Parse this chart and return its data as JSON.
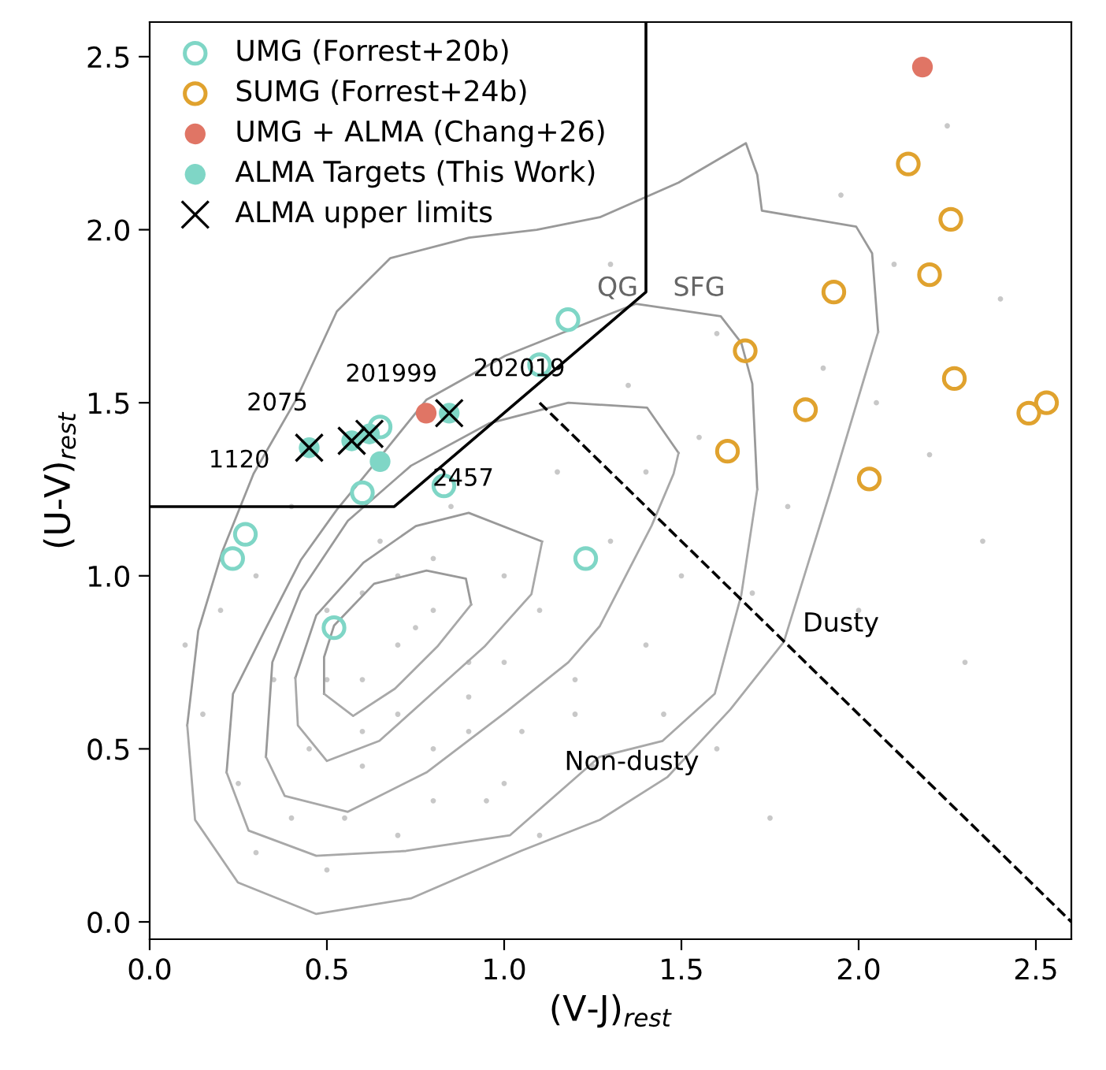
{
  "chart_data": {
    "type": "scatter",
    "xlabel": "(V-J)$_{rest}$",
    "ylabel": "(U-V)$_{rest}$",
    "xlim": [
      0,
      2.6
    ],
    "ylim": [
      -0.05,
      2.6
    ],
    "xticks": [
      {
        "value": 0,
        "label": "0.0"
      },
      0.5,
      {
        "value": 1,
        "label": "1.0"
      },
      1.5,
      {
        "value": 2,
        "label": "2.0"
      },
      2.5
    ],
    "yticks": [
      {
        "value": 0,
        "label": "0.0"
      },
      0.5,
      {
        "value": 1,
        "label": "1.0"
      },
      1.5,
      {
        "value": 2,
        "label": "2.0"
      },
      2.5
    ],
    "grid": false,
    "legend": "top left",
    "annotations": [
      "QG",
      "SFG",
      "Dusty",
      "Non-dusty",
      {
        "text": "1120",
        "x": 0.45,
        "y": 1.37
      },
      {
        "text": "2075",
        "x": 0.57,
        "y": 1.39
      },
      {
        "text": "201999",
        "x": 0.62,
        "y": 1.41
      },
      {
        "text": "2457",
        "x": 0.65,
        "y": 1.33
      },
      {
        "text": "202019",
        "x": 0.845,
        "y": 1.47
      }
    ],
    "series": [
      {
        "color": "#c8c8c8",
        "marker": "circle",
        "x": [
          0.15,
          0.2,
          0.25,
          0.3,
          0.35,
          0.4,
          0.45,
          0.5,
          0.55,
          0.6,
          0.65,
          0.7,
          0.75,
          0.8,
          0.85,
          0.9,
          0.95,
          1.0,
          1.05,
          1.1,
          1.15,
          1.2,
          1.25,
          1.3,
          1.35,
          1.4,
          1.45,
          1.5,
          1.55,
          1.6,
          1.7,
          1.8,
          1.9,
          2.0,
          2.1,
          2.2,
          2.3,
          2.4,
          0.3,
          0.4,
          0.5,
          0.6,
          0.7,
          0.8,
          0.9,
          1.0,
          1.1,
          1.2,
          0.5,
          0.6,
          0.7,
          0.8,
          0.9,
          1.0,
          0.6,
          0.7,
          0.8,
          1.3,
          1.4,
          1.6,
          1.75,
          2.05,
          2.35,
          0.1,
          1.95,
          2.25
        ],
        "values": [
          0.6,
          0.9,
          0.4,
          1.0,
          0.7,
          1.2,
          0.5,
          0.9,
          0.3,
          0.7,
          1.1,
          0.6,
          0.85,
          0.5,
          1.2,
          0.75,
          0.35,
          1.0,
          0.55,
          0.9,
          1.3,
          0.7,
          0.45,
          1.1,
          1.55,
          0.8,
          0.6,
          1.0,
          1.4,
          1.7,
          0.95,
          1.2,
          1.6,
          0.9,
          1.9,
          1.35,
          0.75,
          1.8,
          0.2,
          0.3,
          0.15,
          0.45,
          0.25,
          0.35,
          0.55,
          0.4,
          0.25,
          0.6,
          0.7,
          0.95,
          0.8,
          0.9,
          0.65,
          0.75,
          0.55,
          1.0,
          1.05,
          1.9,
          1.3,
          0.5,
          0.3,
          1.5,
          1.1,
          0.8,
          2.1,
          2.3
        ]
      },
      {
        "type": "line",
        "color": "#999999",
        "line_style": "solid",
        "x": [
          0.492,
          0.492,
          0.52,
          0.633,
          0.781,
          0.892,
          0.907
        ],
        "values": [
          0.659,
          0.765,
          0.856,
          0.977,
          1.015,
          0.992,
          0.917
        ]
      },
      {
        "type": "line",
        "color": "#a8a8a8",
        "line_style": "solid",
        "x": [
          0.492,
          0.574,
          0.692,
          0.811,
          0.907
        ],
        "values": [
          0.659,
          0.595,
          0.674,
          0.795,
          0.917
        ]
      },
      {
        "type": "line",
        "color": "#999999",
        "line_style": "solid",
        "x": [
          0.411,
          0.47,
          0.603,
          0.751,
          0.9,
          1.107
        ],
        "values": [
          0.705,
          0.886,
          1.038,
          1.144,
          1.182,
          1.099
        ]
      },
      {
        "type": "line",
        "color": "#a8a8a8",
        "line_style": "solid",
        "x": [
          0.411,
          0.418,
          0.5,
          0.648,
          0.796,
          0.944,
          1.077,
          1.107
        ],
        "values": [
          0.705,
          0.568,
          0.465,
          0.523,
          0.659,
          0.795,
          0.947,
          1.099
        ]
      },
      {
        "type": "line",
        "color": "#999999",
        "line_style": "solid",
        "x": [
          0.328,
          0.346,
          0.426,
          0.559,
          0.737,
          0.959,
          1.181,
          1.403,
          1.492
        ],
        "values": [
          0.477,
          0.75,
          0.955,
          1.159,
          1.318,
          1.441,
          1.5,
          1.486,
          1.355
        ]
      },
      {
        "type": "line",
        "color": "#a8a8a8",
        "line_style": "solid",
        "x": [
          0.328,
          0.381,
          0.559,
          0.781,
          1.003,
          1.181,
          1.27,
          1.416,
          1.478,
          1.492
        ],
        "values": [
          0.477,
          0.364,
          0.318,
          0.432,
          0.605,
          0.75,
          0.855,
          1.145,
          1.295,
          1.355
        ]
      },
      {
        "type": "line",
        "color": "#999999",
        "line_style": "solid",
        "x": [
          0.217,
          0.235,
          0.324,
          0.426,
          0.528,
          0.648,
          0.781,
          1.003,
          1.225,
          1.372,
          1.611,
          1.669,
          1.7,
          1.714
        ],
        "values": [
          0.432,
          0.659,
          0.841,
          1.045,
          1.191,
          1.341,
          1.509,
          1.636,
          1.727,
          1.786,
          1.75,
          1.673,
          1.555,
          1.25
        ]
      },
      {
        "type": "line",
        "color": "#a8a8a8",
        "line_style": "solid",
        "x": [
          0.217,
          0.279,
          0.47,
          0.723,
          1.016,
          1.269,
          1.447,
          1.594,
          1.669,
          1.714
        ],
        "values": [
          0.432,
          0.264,
          0.191,
          0.205,
          0.25,
          0.477,
          0.523,
          0.659,
          0.945,
          1.25
        ]
      },
      {
        "type": "line",
        "color": "#999999",
        "line_style": "solid",
        "x": [
          0.106,
          0.137,
          0.204,
          0.293,
          0.413,
          0.528,
          0.679,
          0.901,
          1.092,
          1.27,
          1.492,
          1.682,
          1.714,
          1.727,
          1.993,
          2.038,
          2.055
        ],
        "values": [
          0.568,
          0.841,
          1.068,
          1.295,
          1.509,
          1.764,
          1.918,
          1.977,
          2.0,
          2.036,
          2.136,
          2.25,
          2.159,
          2.055,
          2.009,
          1.932,
          1.705
        ]
      },
      {
        "type": "line",
        "color": "#a8a8a8",
        "line_style": "solid",
        "x": [
          0.106,
          0.128,
          0.249,
          0.47,
          0.737,
          1.047,
          1.27,
          1.46,
          1.638,
          1.789,
          1.922,
          2.011,
          2.055
        ],
        "values": [
          0.568,
          0.295,
          0.114,
          0.023,
          0.068,
          0.205,
          0.295,
          0.418,
          0.614,
          0.809,
          1.25,
          1.555,
          1.705
        ]
      },
      {
        "type": "line",
        "color": "#000000",
        "line_style": "solid",
        "x": [
          0,
          0.69,
          1.4,
          1.4
        ],
        "values": [
          1.2,
          1.2,
          1.82,
          2.6
        ]
      },
      {
        "type": "line",
        "color": "#000000",
        "line_style": "dashed",
        "x": [
          1.1,
          2.6
        ],
        "values": [
          1.5,
          0
        ]
      },
      {
        "name": "UMG (Forrest+20b)",
        "color": "#7fd6c6",
        "marker": "circle",
        "x": [
          1.18,
          1.1,
          0.65,
          0.6,
          0.83,
          0.27,
          0.234,
          0.52,
          1.23
        ],
        "values": [
          1.74,
          1.61,
          1.43,
          1.24,
          1.26,
          1.12,
          1.05,
          0.85,
          1.05
        ]
      },
      {
        "name": "SUMG (Forrest+24b)",
        "color": "#e0a22e",
        "marker": "circle",
        "x": [
          2.14,
          2.26,
          2.2,
          1.93,
          1.68,
          2.27,
          1.85,
          2.48,
          2.53,
          1.63,
          2.03
        ],
        "values": [
          2.19,
          2.03,
          1.87,
          1.82,
          1.65,
          1.57,
          1.48,
          1.47,
          1.5,
          1.36,
          1.28
        ]
      },
      {
        "name": "UMG + ALMA (Chang+26)",
        "color": "#e07565",
        "marker": "circle",
        "x": [
          2.18,
          0.78
        ],
        "values": [
          2.47,
          1.47
        ]
      },
      {
        "name": "ALMA Targets (This Work)",
        "color": "#7fd6c6",
        "marker": "circle",
        "x": [
          0.45,
          0.57,
          0.62,
          0.65,
          0.845
        ],
        "values": [
          1.37,
          1.39,
          1.41,
          1.33,
          1.47
        ]
      },
      {
        "name": "ALMA upper limits",
        "color": "#000000",
        "marker": "cross",
        "x": [
          0.45,
          0.57,
          0.62,
          0.845
        ],
        "values": [
          1.37,
          1.39,
          1.41,
          1.47
        ]
      }
    ]
  }
}
